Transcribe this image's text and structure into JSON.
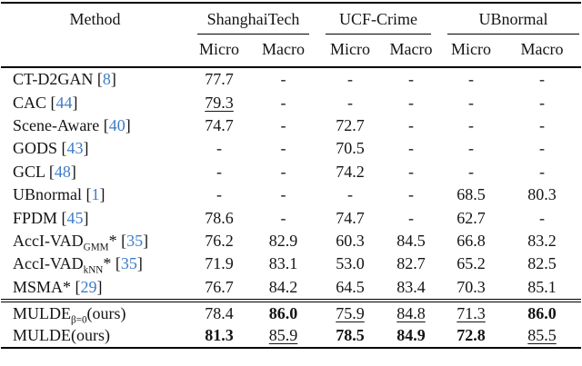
{
  "page": {
    "background": "#ffffff",
    "text_color": "#141414",
    "citation_color": "#3d7cc9"
  },
  "table": {
    "method_header": "Method",
    "groups": [
      "ShanghaiTech",
      "UCF-Crime",
      "UBnormal"
    ],
    "subheaders": [
      "Micro",
      "Macro",
      "Micro",
      "Macro",
      "Micro",
      "Macro"
    ],
    "rows": [
      {
        "method": {
          "base": "CT-D2GAN",
          "sub": "",
          "tail": "",
          "cite": "8"
        },
        "values": [
          {
            "t": "77.7"
          },
          {
            "t": "-"
          },
          {
            "t": "-"
          },
          {
            "t": "-"
          },
          {
            "t": "-"
          },
          {
            "t": "-"
          }
        ]
      },
      {
        "method": {
          "base": "CAC",
          "sub": "",
          "tail": "",
          "cite": "44"
        },
        "values": [
          {
            "t": "79.3",
            "u": true
          },
          {
            "t": "-"
          },
          {
            "t": "-"
          },
          {
            "t": "-"
          },
          {
            "t": "-"
          },
          {
            "t": "-"
          }
        ]
      },
      {
        "method": {
          "base": "Scene-Aware",
          "sub": "",
          "tail": "",
          "cite": "40"
        },
        "values": [
          {
            "t": "74.7"
          },
          {
            "t": "-"
          },
          {
            "t": "72.7"
          },
          {
            "t": "-"
          },
          {
            "t": "-"
          },
          {
            "t": "-"
          }
        ]
      },
      {
        "method": {
          "base": "GODS",
          "sub": "",
          "tail": "",
          "cite": "43"
        },
        "values": [
          {
            "t": "-"
          },
          {
            "t": "-"
          },
          {
            "t": "70.5"
          },
          {
            "t": "-"
          },
          {
            "t": "-"
          },
          {
            "t": "-"
          }
        ]
      },
      {
        "method": {
          "base": "GCL",
          "sub": "",
          "tail": "",
          "cite": "48"
        },
        "values": [
          {
            "t": "-"
          },
          {
            "t": "-"
          },
          {
            "t": "74.2"
          },
          {
            "t": "-"
          },
          {
            "t": "-"
          },
          {
            "t": "-"
          }
        ]
      },
      {
        "method": {
          "base": "UBnormal",
          "sub": "",
          "tail": "",
          "cite": "1"
        },
        "values": [
          {
            "t": "-"
          },
          {
            "t": "-"
          },
          {
            "t": "-"
          },
          {
            "t": "-"
          },
          {
            "t": "68.5"
          },
          {
            "t": "80.3"
          }
        ]
      },
      {
        "method": {
          "base": "FPDM",
          "sub": "",
          "tail": "",
          "cite": "45"
        },
        "values": [
          {
            "t": "78.6"
          },
          {
            "t": "-"
          },
          {
            "t": "74.7"
          },
          {
            "t": "-"
          },
          {
            "t": "62.7"
          },
          {
            "t": "-"
          }
        ]
      },
      {
        "method": {
          "base": "AccI-VAD",
          "sub": "GMM",
          "tail": "*",
          "cite": "35"
        },
        "values": [
          {
            "t": "76.2"
          },
          {
            "t": "82.9"
          },
          {
            "t": "60.3"
          },
          {
            "t": "84.5"
          },
          {
            "t": "66.8"
          },
          {
            "t": "83.2"
          }
        ]
      },
      {
        "method": {
          "base": "AccI-VAD",
          "sub": "kNN",
          "tail": "*",
          "cite": "35"
        },
        "values": [
          {
            "t": "71.9"
          },
          {
            "t": "83.1"
          },
          {
            "t": "53.0"
          },
          {
            "t": "82.7"
          },
          {
            "t": "65.2"
          },
          {
            "t": "82.5"
          }
        ]
      },
      {
        "method": {
          "base": "MSMA",
          "sub": "",
          "tail": "*",
          "cite": "29"
        },
        "values": [
          {
            "t": "76.7"
          },
          {
            "t": "84.2"
          },
          {
            "t": "64.5"
          },
          {
            "t": "83.4"
          },
          {
            "t": "70.3"
          },
          {
            "t": "85.1"
          }
        ]
      },
      {
        "rule_above": true,
        "ours": true,
        "method": {
          "base": "MULDE",
          "sub": "β=0",
          "tail": "(ours)",
          "cite": ""
        },
        "values": [
          {
            "t": "78.4"
          },
          {
            "t": "86.0",
            "b": true
          },
          {
            "t": "75.9",
            "u": true
          },
          {
            "t": "84.8",
            "u": true
          },
          {
            "t": "71.3",
            "u": true
          },
          {
            "t": "86.0",
            "b": true
          }
        ]
      },
      {
        "ours": true,
        "method": {
          "base": "MULDE",
          "sub": "",
          "tail": "(ours)",
          "cite": ""
        },
        "values": [
          {
            "t": "81.3",
            "b": true
          },
          {
            "t": "85.9",
            "u": true
          },
          {
            "t": "78.5",
            "b": true
          },
          {
            "t": "84.9",
            "b": true
          },
          {
            "t": "72.8",
            "b": true
          },
          {
            "t": "85.5",
            "u": true
          }
        ]
      }
    ]
  }
}
